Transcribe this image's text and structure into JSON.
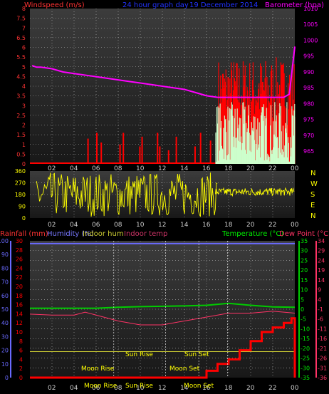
{
  "colors": {
    "wind": "#ff0000",
    "barometer": "#ff00ff",
    "wind_axis": "#ff3333",
    "title": "#0000ff",
    "direction": "#ffff00",
    "humidity": "#6a6aff",
    "indoor_hum": "#cccc33",
    "indoor_temp": "#cc3366",
    "temperature": "#00cc00",
    "dewpoint": "#ff3366",
    "rain": "#ff0000",
    "gust_light": "#ccffcc",
    "grid": "#bbbbbb",
    "panel_top": "#3a3a3a",
    "panel_bottom": "#191919"
  },
  "header": {
    "wind_label": "Windspeed (m/s)",
    "graph_title": "24 hour graph day",
    "date": "19 December 2014",
    "barometer_label": "Barometer (hpa)"
  },
  "lower_header": {
    "rainfall": "Rainfall (mm)",
    "humidity": "Humidity (%)",
    "indoor_hum": "Indoor hum",
    "indoor_temp": "Indoor temp",
    "temperature": "Temperature (°C)",
    "dewpoint": "Dew Point (°C)"
  },
  "annotations": {
    "moon_rise_top": "Moon Rise",
    "sun_rise_top": "Sun Rise",
    "sun_set_top": "Sun Set",
    "moon_set_top": "Moon Set",
    "moon_rise_bottom": "Moon Rise",
    "sun_rise_bottom": "Sun Rise",
    "moon_set_bottom": "Moon Set"
  },
  "compass": [
    "N",
    "W",
    "S",
    "E",
    "N"
  ],
  "chart_data": [
    {
      "type": "line",
      "panel": "wind_and_pressure",
      "x_ticks": [
        "02",
        "04",
        "06",
        "08",
        "10",
        "12",
        "14",
        "16",
        "18",
        "20",
        "22",
        "00"
      ],
      "y_left_ticks": [
        "0",
        "0.5",
        "1",
        "1.5",
        "2",
        "2.5",
        "3",
        "3.5",
        "4",
        "4.5",
        "5",
        "5.5",
        "6",
        "6.5",
        "7",
        "7.5",
        "8"
      ],
      "y_right_ticks": [
        "965",
        "970",
        "975",
        "980",
        "985",
        "990",
        "995",
        "1000",
        "1005",
        "1010"
      ],
      "ylim_left": [
        0,
        8
      ],
      "ylim_right": [
        961,
        1010
      ],
      "wind_bars": [
        {
          "t": 5.2,
          "v": 1.3
        },
        {
          "t": 6.0,
          "v": 1.6
        },
        {
          "t": 6.4,
          "v": 1.1
        },
        {
          "t": 8.1,
          "v": 1.0
        },
        {
          "t": 8.4,
          "v": 1.6
        },
        {
          "t": 9.9,
          "v": 0.9
        },
        {
          "t": 10.1,
          "v": 1.4
        },
        {
          "t": 11.5,
          "v": 1.6
        },
        {
          "t": 11.7,
          "v": 0.9
        },
        {
          "t": 12.5,
          "v": 0.7
        },
        {
          "t": 13.2,
          "v": 1.4
        },
        {
          "t": 14.9,
          "v": 0.9
        },
        {
          "t": 15.4,
          "v": 1.6
        },
        {
          "t": 16.3,
          "v": 1.2
        }
      ],
      "barometer": {
        "name": "Barometer",
        "x": [
          0.2,
          0.6,
          1.0,
          2.0,
          3.0,
          4.0,
          5.0,
          6.0,
          7.0,
          8.0,
          9.0,
          10.0,
          11.0,
          12.0,
          13.0,
          14.0,
          15.0,
          16.0,
          17.0,
          18.0,
          19.0,
          20.0,
          21.0,
          22.0,
          23.0,
          23.5,
          24.0
        ],
        "y": [
          992,
          991.5,
          991.5,
          991,
          990,
          989.5,
          989,
          988.5,
          988,
          987.5,
          987,
          986.5,
          986,
          985.5,
          985,
          984.5,
          983.5,
          982.5,
          982,
          982,
          982,
          982,
          982,
          982,
          982,
          983,
          998
        ]
      },
      "wind_gust_bars": {
        "from": 17.0,
        "to": 24.0,
        "mean": 3.4,
        "max": 5.5,
        "min": 2.0
      },
      "wind_light": {
        "from": 16.8,
        "to": 24.0,
        "mean": 2.6,
        "min": 0.1
      }
    },
    {
      "type": "line",
      "panel": "wind_direction",
      "x_ticks": [
        "02",
        "04",
        "06",
        "08",
        "10",
        "12",
        "14",
        "16",
        "18",
        "20",
        "22",
        "00"
      ],
      "y_ticks": [
        "360",
        "270",
        "180",
        "90",
        "0"
      ],
      "ylim": [
        0,
        360
      ],
      "right_labels": [
        "N",
        "W",
        "S",
        "E",
        "N"
      ]
    },
    {
      "type": "line",
      "panel": "temperature_humidity_rain",
      "x_ticks": [
        "02",
        "04",
        "06",
        "08",
        "10",
        "12",
        "14",
        "16",
        "18",
        "20",
        "22",
        "00"
      ],
      "humidity_ticks": [
        "0",
        "10",
        "20",
        "30",
        "40",
        "50",
        "60",
        "70",
        "80",
        "90",
        "100"
      ],
      "rain_ticks": [
        "0",
        "2",
        "4",
        "6",
        "8",
        "10",
        "12",
        "14",
        "16",
        "18",
        "20",
        "22",
        "24",
        "26",
        "28",
        "30"
      ],
      "temp_ticks": [
        "35",
        "30",
        "25",
        "20",
        "15",
        "10",
        "5",
        "0",
        "-5",
        "-10",
        "-15",
        "-20",
        "-25",
        "-30",
        "-35"
      ],
      "dew_ticks": [
        "34",
        "29",
        "24",
        "19",
        "14",
        "9",
        "4",
        "-1",
        "-6",
        "-11",
        "-16",
        "-21",
        "-26",
        "-31",
        "-36"
      ],
      "humidity_ylim": [
        0,
        100
      ],
      "temp_ylim": [
        -35,
        35
      ],
      "humidity": {
        "name": "Humidity",
        "x": [
          0,
          24
        ],
        "y": [
          98,
          98
        ]
      },
      "temperature": {
        "name": "Temperature",
        "x": [
          0,
          2,
          4,
          6,
          8,
          10,
          12,
          14,
          16,
          18,
          20,
          22,
          24
        ],
        "y": [
          0.5,
          0.5,
          0.5,
          0.5,
          1,
          1.3,
          1.5,
          1.7,
          2,
          3,
          2,
          1.2,
          1
        ]
      },
      "dewpoint": {
        "name": "Dew Point",
        "x": [
          0,
          2,
          4,
          5,
          6,
          8,
          10,
          12,
          14,
          16,
          18,
          20,
          22,
          24
        ],
        "y": [
          -2.5,
          -3,
          -3,
          -1.5,
          -3,
          -6,
          -8,
          -8,
          -6,
          -4,
          -2,
          -2,
          -1,
          -2
        ]
      },
      "indoor_hum": {
        "name": "Indoor hum",
        "x": [
          0,
          24
        ],
        "y": [
          19,
          19
        ]
      },
      "rainfall": {
        "name": "Rainfall",
        "x": [
          0,
          15.5,
          16,
          17,
          18,
          19,
          20,
          21,
          22,
          23,
          23.7,
          24
        ],
        "y": [
          0,
          0,
          1.5,
          3,
          4,
          6,
          8,
          10,
          11,
          12,
          13,
          0
        ]
      }
    }
  ]
}
